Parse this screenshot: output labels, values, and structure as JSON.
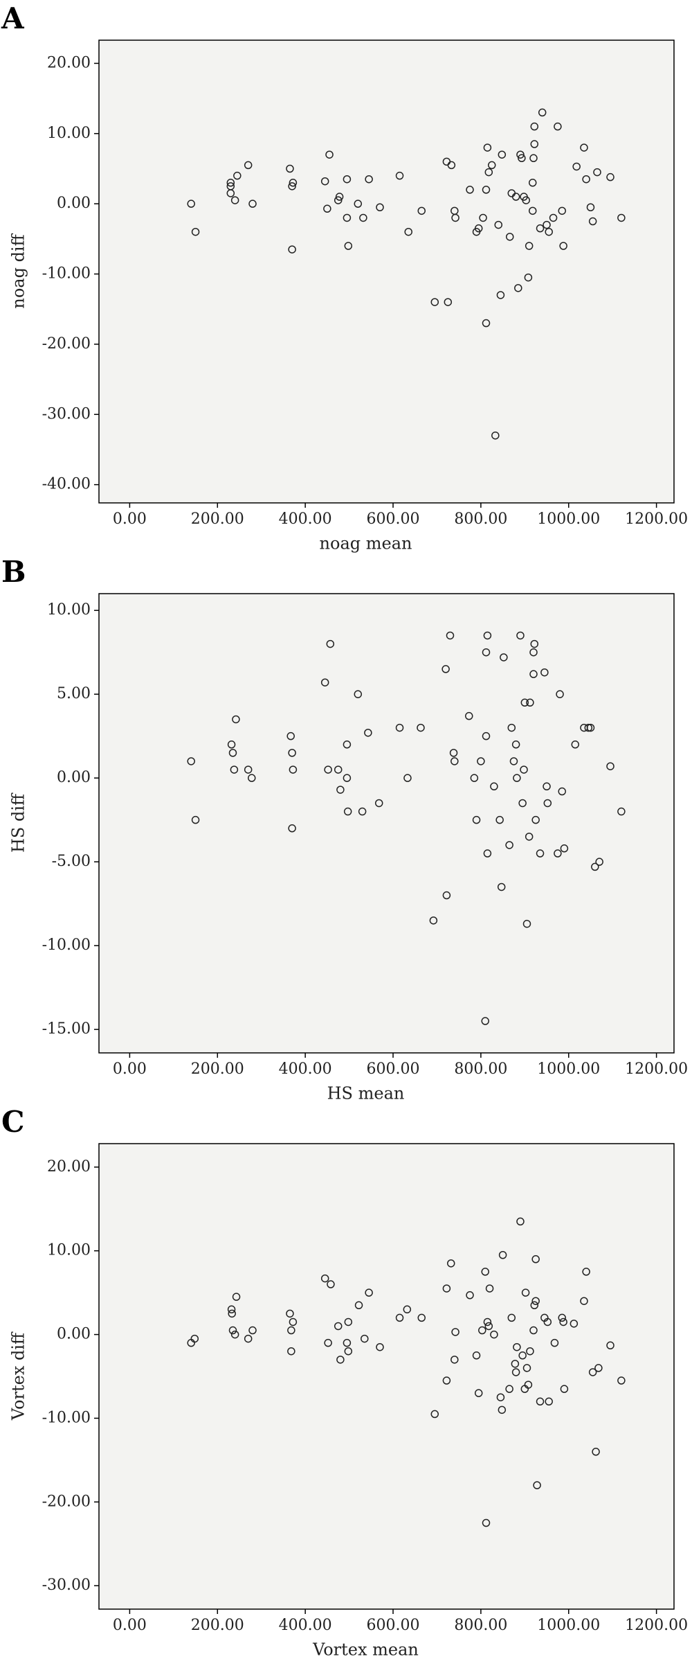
{
  "chart_data": [
    {
      "type": "scatter",
      "panel": "A",
      "x_label": "noag mean",
      "y_label": "noag diff",
      "color": "#222222",
      "xlim": [
        -70,
        1240
      ],
      "ylim": [
        -42.6,
        23.3
      ],
      "xticks": [
        {
          "value": 0,
          "label": "0.00"
        },
        {
          "value": 200,
          "label": "200.00"
        },
        {
          "value": 400,
          "label": "400.00"
        },
        {
          "value": 600,
          "label": "600.00"
        },
        {
          "value": 800,
          "label": "800.00"
        },
        {
          "value": 1000,
          "label": "1000.00"
        },
        {
          "value": 1200,
          "label": "1200.00"
        }
      ],
      "yticks": [
        {
          "value": 20,
          "label": "20.00"
        },
        {
          "value": 10,
          "label": "10.00"
        },
        {
          "value": 0,
          "label": "0.00"
        },
        {
          "value": -10,
          "label": "-10.00"
        },
        {
          "value": -20,
          "label": "-20.00"
        },
        {
          "value": -30,
          "label": "-30.00"
        },
        {
          "value": -40,
          "label": "-40.00"
        }
      ],
      "x": [
        140,
        150,
        230,
        230,
        230,
        240,
        245,
        270,
        280,
        365,
        370,
        372,
        370,
        445,
        450,
        455,
        475,
        478,
        495,
        495,
        498,
        520,
        532,
        545,
        570,
        615,
        635,
        665,
        695,
        725,
        722,
        733,
        740,
        742,
        775,
        790,
        795,
        805,
        812,
        812,
        818,
        815,
        825,
        833,
        840,
        845,
        848,
        866,
        870,
        880,
        885,
        890,
        893,
        898,
        903,
        908,
        910,
        918,
        918,
        920,
        922,
        922,
        935,
        940,
        950,
        955,
        965,
        975,
        985,
        988,
        1018,
        1035,
        1040,
        1050,
        1055,
        1065,
        1095,
        1120
      ],
      "values": [
        0,
        -4,
        3,
        2.5,
        1.5,
        0.5,
        4,
        5.5,
        0,
        5,
        2.5,
        3,
        -6.5,
        3.2,
        -0.7,
        7,
        0.5,
        1,
        -2,
        3.5,
        -6,
        0,
        -2,
        3.5,
        -0.5,
        4,
        -4,
        -1,
        -14,
        -14,
        6,
        5.5,
        -1,
        -2,
        2,
        -4,
        -3.5,
        -2,
        -17,
        2,
        4.5,
        8,
        5.5,
        -33,
        -3,
        -13,
        7,
        -4.7,
        1.5,
        1,
        -12,
        7,
        6.5,
        1,
        0.5,
        -10.5,
        -6,
        -1,
        3,
        6.5,
        8.5,
        11,
        -3.5,
        13,
        -3,
        -4,
        -2,
        11,
        -1,
        -6,
        5.3,
        8,
        3.5,
        -0.5,
        -2.5,
        4.5,
        3.8,
        -2
      ]
    },
    {
      "type": "scatter",
      "panel": "B",
      "x_label": "HS mean",
      "y_label": "HS diff",
      "color": "#222222",
      "xlim": [
        -70,
        1240
      ],
      "ylim": [
        -16.4,
        11.0
      ],
      "xticks": [
        {
          "value": 0,
          "label": "0.00"
        },
        {
          "value": 200,
          "label": "200.00"
        },
        {
          "value": 400,
          "label": "400.00"
        },
        {
          "value": 600,
          "label": "600.00"
        },
        {
          "value": 800,
          "label": "800.00"
        },
        {
          "value": 1000,
          "label": "1000.00"
        },
        {
          "value": 1200,
          "label": "1200.00"
        }
      ],
      "yticks": [
        {
          "value": 10,
          "label": "10.00"
        },
        {
          "value": 5,
          "label": "5.00"
        },
        {
          "value": 0,
          "label": "0.00"
        },
        {
          "value": -5,
          "label": "-5.00"
        },
        {
          "value": -10,
          "label": "-10.00"
        },
        {
          "value": -15,
          "label": "-15.00"
        }
      ],
      "x": [
        140,
        150,
        232,
        235,
        238,
        242,
        270,
        278,
        367,
        370,
        372,
        370,
        445,
        452,
        457,
        475,
        480,
        495,
        495,
        497,
        520,
        530,
        543,
        568,
        615,
        633,
        663,
        692,
        722,
        720,
        730,
        738,
        740,
        773,
        785,
        790,
        800,
        810,
        812,
        812,
        815,
        815,
        830,
        843,
        847,
        852,
        865,
        870,
        875,
        880,
        882,
        890,
        895,
        898,
        900,
        905,
        910,
        912,
        920,
        920,
        922,
        925,
        935,
        945,
        950,
        952,
        975,
        980,
        985,
        990,
        1015,
        1035,
        1045,
        1050,
        1060,
        1070,
        1095,
        1120
      ],
      "values": [
        1,
        -2.5,
        2,
        1.5,
        0.5,
        3.5,
        0.5,
        0,
        2.5,
        1.5,
        0.5,
        -3,
        5.7,
        0.5,
        8,
        0.5,
        -0.7,
        0,
        2,
        -2,
        5,
        -2,
        2.7,
        -1.5,
        3,
        0,
        3,
        -8.5,
        -7,
        6.5,
        8.5,
        1.5,
        1,
        3.7,
        0,
        -2.5,
        1,
        -14.5,
        2.5,
        7.5,
        8.5,
        -4.5,
        -0.5,
        -2.5,
        -6.5,
        7.2,
        -4,
        3,
        1,
        2,
        0,
        8.5,
        -1.5,
        0.5,
        4.5,
        -8.7,
        -3.5,
        4.5,
        6.2,
        7.5,
        8,
        -2.5,
        -4.5,
        6.3,
        -0.5,
        -1.5,
        -4.5,
        5,
        -0.8,
        -4.2,
        2,
        3,
        3,
        3,
        -5.3,
        -5,
        0.7,
        -2
      ]
    },
    {
      "type": "scatter",
      "panel": "C",
      "x_label": "Vortex mean",
      "y_label": "Vortex diff",
      "color": "#222222",
      "xlim": [
        -70,
        1240
      ],
      "ylim": [
        -32.8,
        22.8
      ],
      "xticks": [
        {
          "value": 0,
          "label": "0.00"
        },
        {
          "value": 200,
          "label": "200.00"
        },
        {
          "value": 400,
          "label": "400.00"
        },
        {
          "value": 600,
          "label": "600.00"
        },
        {
          "value": 800,
          "label": "800.00"
        },
        {
          "value": 1000,
          "label": "1000.00"
        },
        {
          "value": 1200,
          "label": "1200.00"
        }
      ],
      "yticks": [
        {
          "value": 20,
          "label": "20.00"
        },
        {
          "value": 10,
          "label": "10.00"
        },
        {
          "value": 0,
          "label": "0.00"
        },
        {
          "value": -10,
          "label": "-10.00"
        },
        {
          "value": -20,
          "label": "-20.00"
        },
        {
          "value": -30,
          "label": "-30.00"
        }
      ],
      "x": [
        140,
        148,
        232,
        233,
        235,
        240,
        243,
        270,
        280,
        365,
        368,
        372,
        368,
        445,
        452,
        458,
        475,
        480,
        495,
        498,
        498,
        522,
        535,
        545,
        570,
        615,
        632,
        665,
        695,
        722,
        722,
        732,
        740,
        742,
        775,
        790,
        795,
        803,
        810,
        812,
        815,
        818,
        820,
        830,
        845,
        848,
        850,
        865,
        870,
        878,
        880,
        882,
        890,
        895,
        900,
        902,
        905,
        908,
        912,
        920,
        922,
        925,
        925,
        928,
        935,
        945,
        952,
        955,
        968,
        985,
        988,
        990,
        1012,
        1035,
        1040,
        1055,
        1062,
        1068,
        1095,
        1120
      ],
      "values": [
        -1,
        -0.5,
        3,
        2.5,
        0.5,
        0,
        4.5,
        -0.5,
        0.5,
        2.5,
        0.5,
        1.5,
        -2,
        6.7,
        -1,
        6,
        1,
        -3,
        -1,
        -2,
        1.5,
        3.5,
        -0.5,
        5,
        -1.5,
        2,
        3,
        2,
        -9.5,
        -5.5,
        5.5,
        8.5,
        -3,
        0.3,
        4.7,
        -2.5,
        -7,
        0.5,
        7.5,
        -22.5,
        1.5,
        1,
        5.5,
        0,
        -7.5,
        -9,
        9.5,
        -6.5,
        2,
        -3.5,
        -4.5,
        -1.5,
        13.5,
        -2.5,
        -6.5,
        5,
        -4,
        -6,
        -2,
        0.5,
        3.5,
        9,
        4,
        -18,
        -8,
        2,
        1.5,
        -8,
        -1,
        2,
        1.5,
        -6.5,
        1.3,
        4,
        7.5,
        -4.5,
        -14,
        -4,
        -1.3,
        -5.5
      ]
    }
  ]
}
